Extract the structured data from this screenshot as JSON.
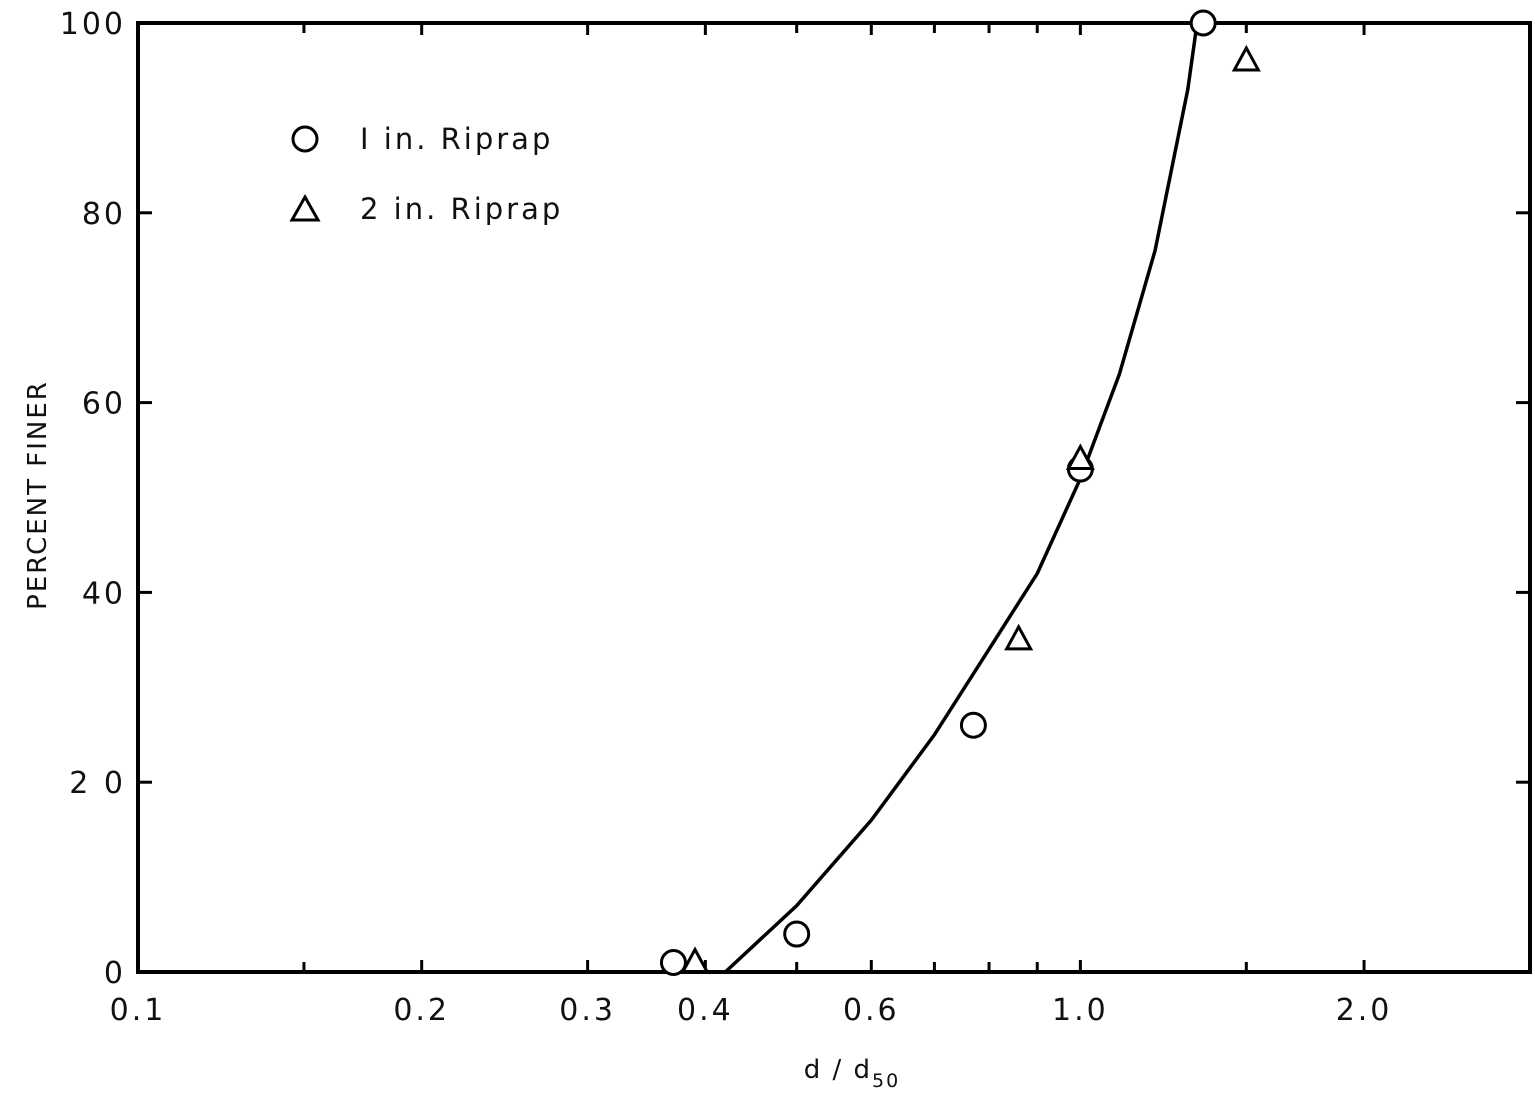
{
  "chart_data": {
    "type": "scatter",
    "title": "",
    "xlabel": "d / d",
    "xlabel_subscript": "50",
    "ylabel": "PERCENT FINER",
    "x_scale": "log",
    "xlim": [
      0.1,
      3.0
    ],
    "ylim": [
      0,
      100
    ],
    "x_ticks": [
      {
        "value": 0.1,
        "label": "0.1"
      },
      {
        "value": 0.2,
        "label": "0.2"
      },
      {
        "value": 0.3,
        "label": "0.3"
      },
      {
        "value": 0.4,
        "label": "0.4"
      },
      {
        "value": 0.6,
        "label": "0.6"
      },
      {
        "value": 1.0,
        "label": "1.0"
      },
      {
        "value": 2.0,
        "label": "2.0"
      }
    ],
    "x_minor_ticks": [
      0.15,
      0.5,
      0.7,
      0.8,
      0.9,
      1.5,
      3.0
    ],
    "y_ticks": [
      {
        "value": 0,
        "label": "0"
      },
      {
        "value": 20,
        "label": "2 0"
      },
      {
        "value": 40,
        "label": "40"
      },
      {
        "value": 60,
        "label": "60"
      },
      {
        "value": 80,
        "label": "80"
      },
      {
        "value": 100,
        "label": "100"
      }
    ],
    "grid": false,
    "legend_position": "top-left",
    "series": [
      {
        "name": "I in. Riprap",
        "marker": "circle",
        "points": [
          {
            "x": 0.37,
            "y": 1
          },
          {
            "x": 0.5,
            "y": 4
          },
          {
            "x": 0.77,
            "y": 26
          },
          {
            "x": 1.0,
            "y": 53
          },
          {
            "x": 1.35,
            "y": 100
          }
        ]
      },
      {
        "name": "2 in. Riprap",
        "marker": "triangle",
        "points": [
          {
            "x": 0.39,
            "y": 1
          },
          {
            "x": 0.86,
            "y": 35
          },
          {
            "x": 1.0,
            "y": 54
          },
          {
            "x": 1.5,
            "y": 96
          }
        ]
      }
    ],
    "fit_curve": {
      "points": [
        {
          "x": 0.42,
          "y": 0
        },
        {
          "x": 0.5,
          "y": 7
        },
        {
          "x": 0.6,
          "y": 16
        },
        {
          "x": 0.7,
          "y": 25
        },
        {
          "x": 0.8,
          "y": 34
        },
        {
          "x": 0.9,
          "y": 42
        },
        {
          "x": 1.0,
          "y": 52
        },
        {
          "x": 1.1,
          "y": 63
        },
        {
          "x": 1.2,
          "y": 76
        },
        {
          "x": 1.3,
          "y": 93
        },
        {
          "x": 1.33,
          "y": 100
        }
      ]
    }
  }
}
